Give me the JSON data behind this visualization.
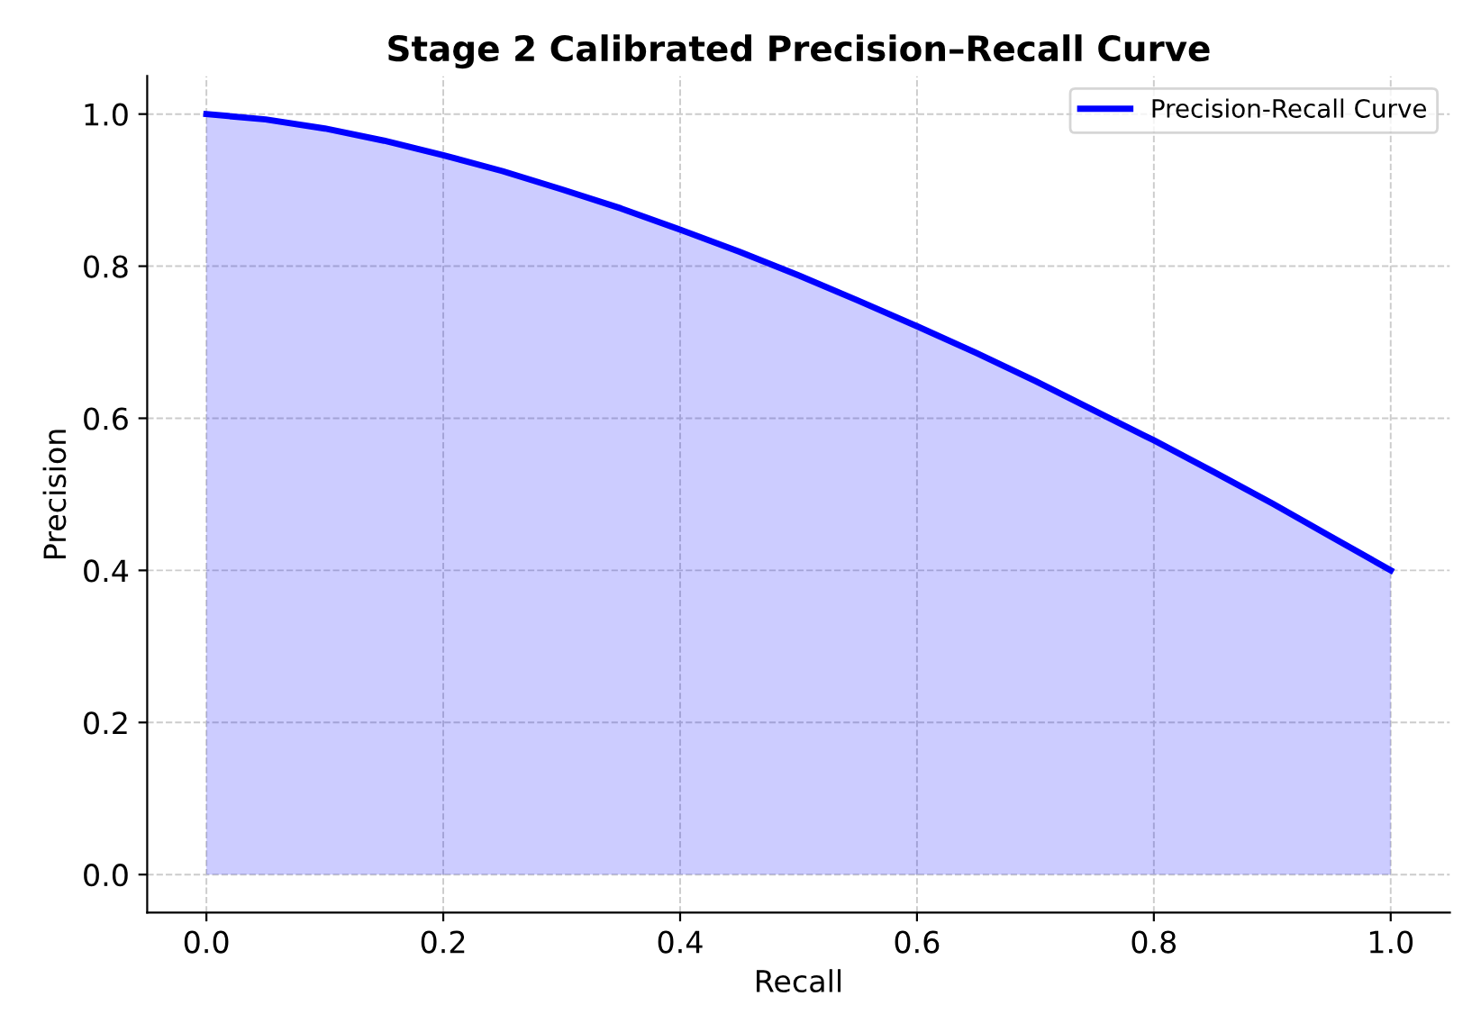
{
  "chart_data": {
    "type": "area",
    "title": "Stage 2 Calibrated Precision–Recall Curve",
    "xlabel": "Recall",
    "ylabel": "Precision",
    "x": [
      0,
      0.05,
      0.1,
      0.15,
      0.2,
      0.25,
      0.3,
      0.35,
      0.4,
      0.45,
      0.5,
      0.55,
      0.6,
      0.65,
      0.7,
      0.75,
      0.8,
      0.85,
      0.9,
      0.95,
      1.0
    ],
    "series": [
      {
        "name": "Precision-Recall Curve",
        "color": "#0000ff",
        "values": [
          1.0,
          0.993,
          0.981,
          0.965,
          0.946,
          0.925,
          0.901,
          0.876,
          0.848,
          0.819,
          0.788,
          0.755,
          0.721,
          0.686,
          0.649,
          0.61,
          0.571,
          0.53,
          0.488,
          0.444,
          0.4
        ]
      }
    ],
    "xlim": [
      -0.05,
      1.05
    ],
    "ylim": [
      -0.05,
      1.05
    ],
    "xticks": [
      {
        "value": 0,
        "label": "0.0"
      },
      0.2,
      0.4,
      0.6,
      0.8,
      {
        "value": 1,
        "label": "1.0"
      }
    ],
    "yticks": [
      {
        "value": 0,
        "label": "0.0"
      },
      0.2,
      0.4,
      0.6,
      0.8,
      {
        "value": 1,
        "label": "1.0"
      }
    ],
    "grid": true,
    "legend": "top right"
  }
}
